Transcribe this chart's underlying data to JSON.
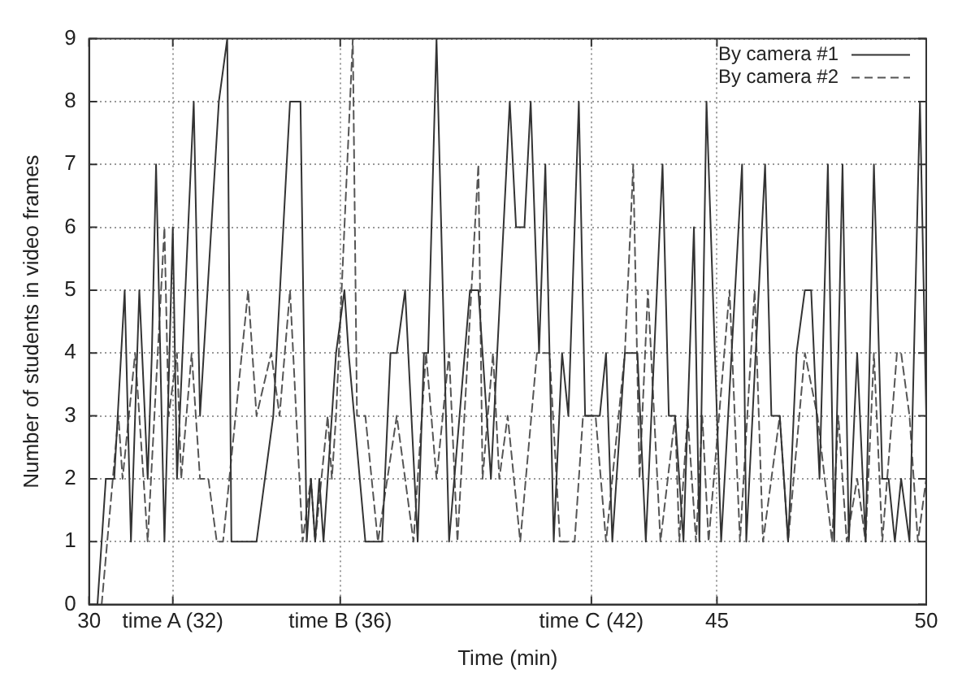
{
  "chart_data": {
    "type": "line",
    "xlabel": "Time (min)",
    "ylabel": "Number of students in video frames",
    "xlim": [
      30,
      50
    ],
    "ylim": [
      0,
      9
    ],
    "xticks": [
      30,
      {
        "value": 32,
        "label": "time A (32)"
      },
      {
        "value": 36,
        "label": "time B (36)"
      },
      {
        "value": 42,
        "label": "time C (42)"
      },
      45,
      50
    ],
    "yticks": [
      0,
      1,
      2,
      3,
      4,
      5,
      6,
      7,
      8,
      9
    ],
    "grid": true,
    "legend": "top right",
    "marker": "none",
    "series": [
      {
        "name": "By camera #1",
        "color": "#333333",
        "line_style": "solid",
        "x": [
          30.2,
          30.4,
          30.6,
          30.85,
          31.0,
          31.2,
          31.4,
          31.5,
          31.6,
          31.7,
          31.8,
          32.0,
          32.1,
          32.5,
          32.65,
          33.1,
          33.3,
          33.4,
          34.0,
          34.4,
          34.8,
          35.05,
          35.2,
          35.3,
          35.4,
          35.5,
          35.6,
          35.9,
          36.1,
          36.2,
          36.6,
          37.0,
          37.2,
          37.35,
          37.55,
          37.85,
          38.0,
          38.1,
          38.3,
          38.6,
          39.1,
          39.3,
          39.6,
          40.05,
          40.2,
          40.4,
          40.55,
          40.75,
          40.9,
          41.1,
          41.3,
          41.45,
          41.7,
          41.85,
          42.2,
          42.35,
          42.5,
          42.8,
          43.1,
          43.3,
          43.7,
          43.85,
          44.0,
          44.2,
          44.45,
          44.58,
          44.75,
          45.1,
          45.6,
          45.7,
          46.15,
          46.3,
          46.5,
          46.7,
          46.9,
          47.1,
          47.25,
          47.45,
          47.65,
          47.8,
          48.0,
          48.15,
          48.35,
          48.55,
          48.75,
          48.95,
          49.1,
          49.25,
          49.4,
          49.6,
          49.85,
          50.0
        ],
        "values": [
          0,
          2,
          2,
          5,
          1,
          5,
          2,
          4,
          7,
          4,
          1,
          6,
          2,
          8,
          3,
          8,
          9,
          1,
          1,
          3,
          8,
          8,
          1,
          2,
          1,
          2,
          1,
          4,
          5,
          4,
          1,
          1,
          4,
          4,
          5,
          1,
          4,
          4,
          9,
          1,
          5,
          5,
          2,
          8,
          6,
          6,
          8,
          4,
          7,
          1,
          4,
          3,
          8,
          3,
          3,
          4,
          1,
          4,
          4,
          1,
          7,
          3,
          3,
          1,
          6,
          1,
          8,
          1,
          7,
          1,
          7,
          3,
          3,
          1,
          4,
          5,
          5,
          2,
          7,
          1,
          7,
          1,
          4,
          1,
          7,
          2,
          2,
          1,
          2,
          1,
          8,
          3
        ]
      },
      {
        "name": "By camera #2",
        "color": "#555555",
        "line_style": "dashed",
        "x": [
          30.3,
          30.7,
          30.8,
          31.1,
          31.4,
          31.8,
          31.9,
          32.1,
          32.2,
          32.45,
          32.65,
          32.85,
          33.05,
          33.2,
          33.8,
          34.0,
          34.35,
          34.55,
          34.8,
          35.1,
          35.3,
          35.4,
          35.55,
          35.7,
          35.8,
          35.9,
          36.3,
          36.4,
          36.6,
          36.9,
          37.35,
          37.75,
          38.05,
          38.3,
          38.6,
          38.8,
          39.3,
          39.4,
          39.65,
          39.8,
          40.0,
          40.3,
          40.7,
          41.0,
          41.25,
          41.6,
          41.8,
          42.1,
          42.35,
          42.8,
          43.0,
          43.15,
          43.35,
          43.65,
          44.0,
          44.1,
          44.3,
          44.5,
          44.65,
          44.8,
          45.3,
          45.55,
          45.9,
          46.1,
          46.5,
          46.7,
          47.1,
          47.4,
          47.75,
          47.9,
          48.1,
          48.35,
          48.55,
          48.75,
          48.95,
          49.3,
          49.4,
          49.6,
          49.8,
          50.0
        ],
        "values": [
          0,
          3,
          2,
          4,
          1,
          6,
          3,
          4,
          2,
          4,
          2,
          2,
          1,
          1,
          5,
          3,
          4,
          3,
          5,
          1,
          2,
          1,
          2,
          3,
          2,
          3,
          9,
          3,
          3,
          1,
          3,
          1,
          4,
          2,
          4,
          1,
          7,
          2,
          4,
          2,
          3,
          1,
          4,
          4,
          1,
          1,
          3,
          3,
          1,
          4,
          7,
          2,
          5,
          1,
          3,
          1,
          3,
          1,
          3,
          1,
          5,
          1,
          5,
          1,
          3,
          1,
          4,
          3,
          1,
          3,
          1,
          2,
          1,
          4,
          1,
          4,
          4,
          3,
          1,
          2
        ]
      }
    ]
  }
}
